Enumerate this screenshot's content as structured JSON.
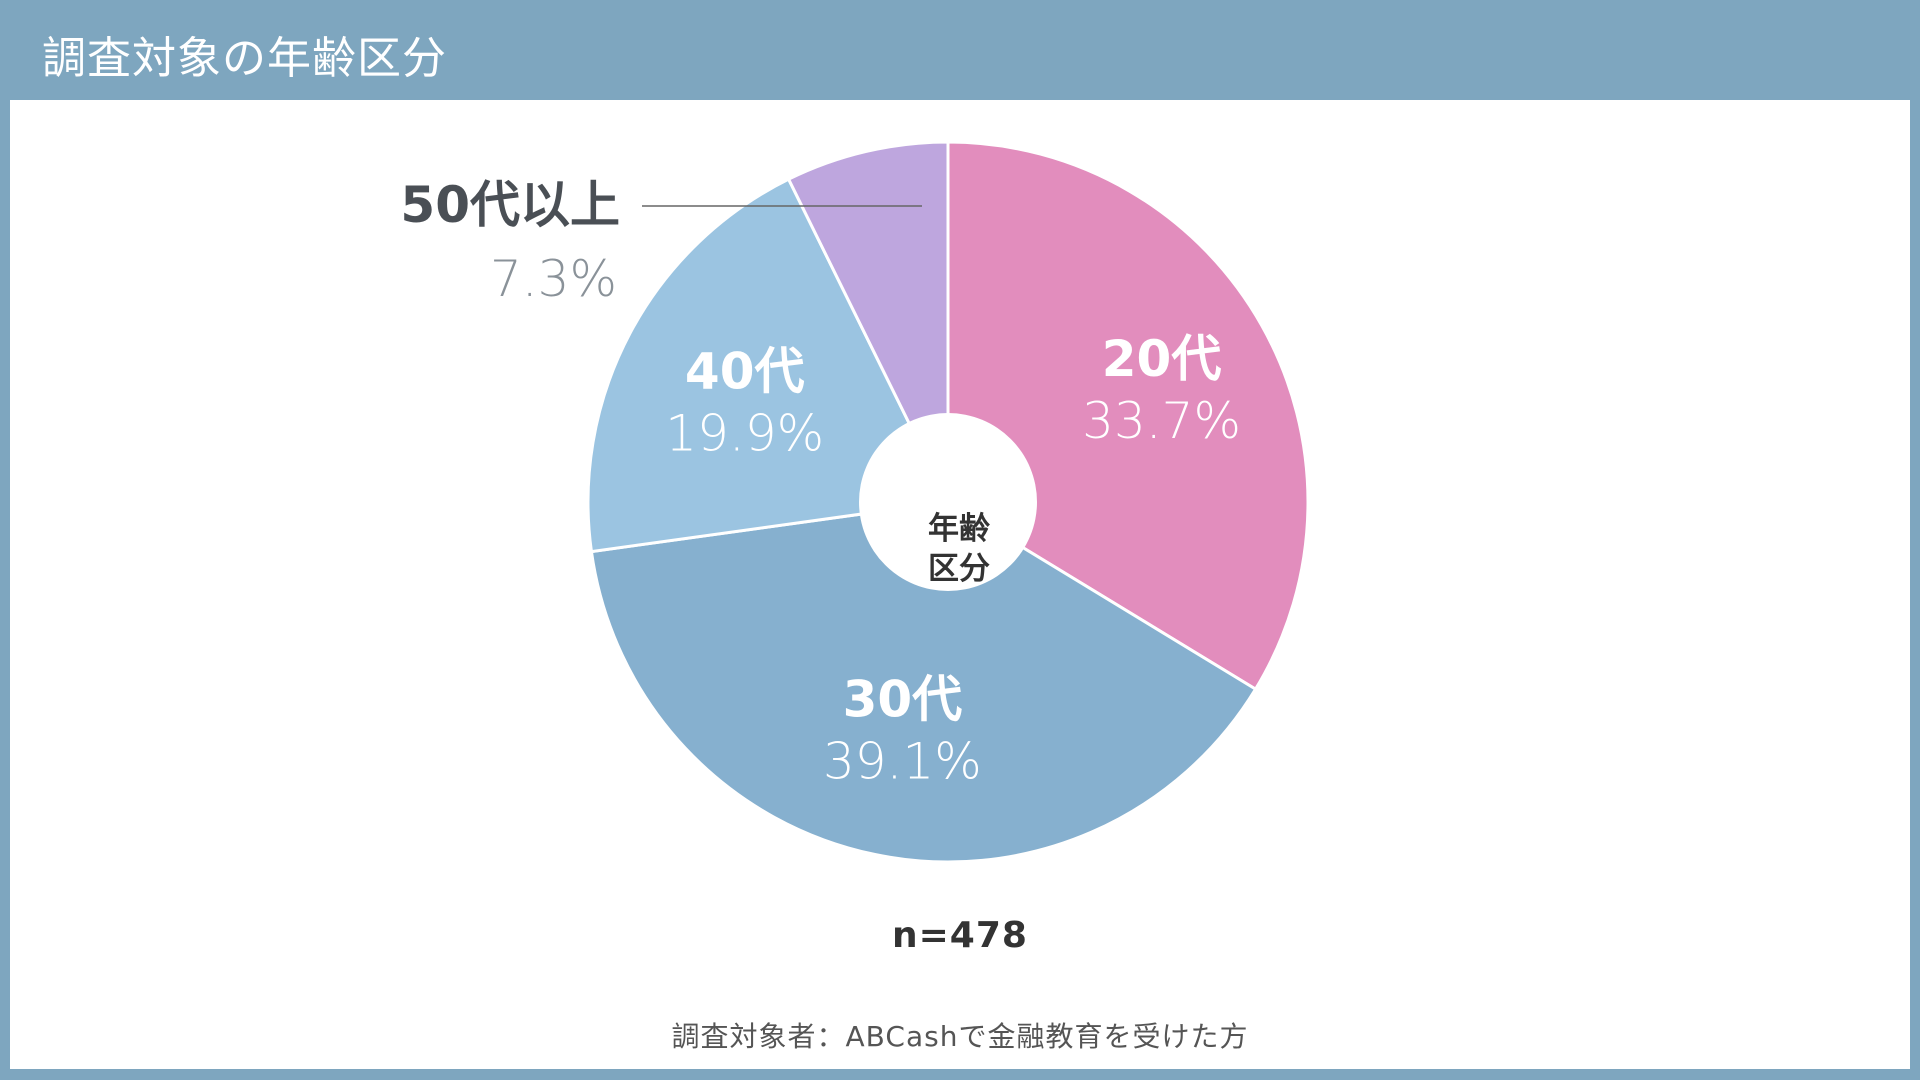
{
  "header": {
    "title": "調査対象の年齢区分"
  },
  "chart_data": {
    "type": "pie",
    "center_label_lines": [
      "年齢",
      "区分"
    ],
    "categories": [
      "20代",
      "30代",
      "40代",
      "50代以上"
    ],
    "values": [
      33.7,
      39.1,
      19.9,
      7.3
    ],
    "value_labels": [
      "33.7%",
      "39.1%",
      "19.9%",
      "7.3%"
    ],
    "colors": [
      "#e28dbd",
      "#86b0cf",
      "#9bc4e1",
      "#bea6de"
    ],
    "start_angle_deg": 0,
    "direction": "clockwise"
  },
  "n_label": "n=478",
  "footnote": "調査対象者：ABCashで金融教育を受けた方"
}
